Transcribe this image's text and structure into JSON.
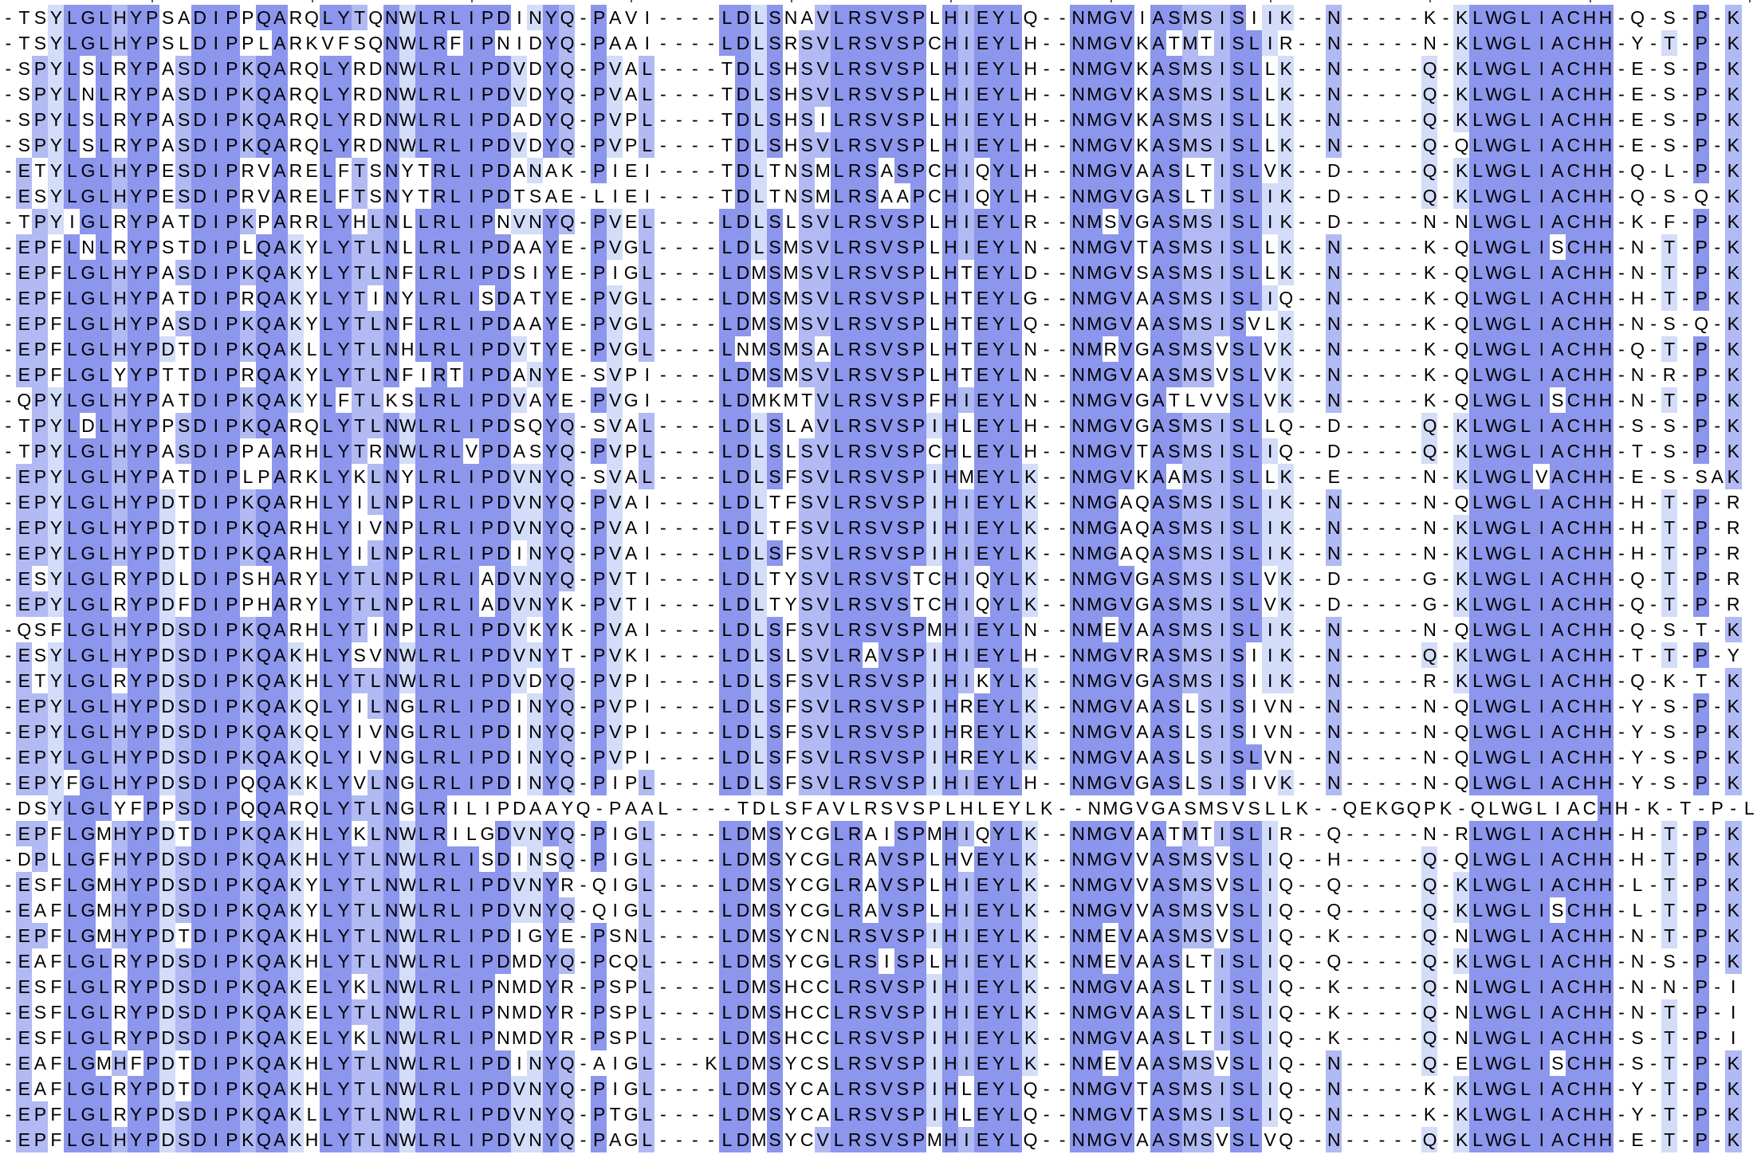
{
  "palette": {
    "dark": "#8c96ec",
    "mid": "#b1baf2",
    "light": "#d3dcf8",
    "none": "#ffffff",
    "text": "#000000"
  },
  "rows": [
    "-TSYLGLHYPSADIPPQARQLYTQNWLRLIPDINYQ-PAVI----LDLSNAVLRSVSPLHIEYLQ--NMGVIASMSISIIK--N-----K-KLWGLIACHH-Q-S-P-K",
    "-TSYLGLHYPSLDIPPLARKVFSQNWLRFIPNIDYQ-PAAI----LDLSRSVLRSVSPCHIEYLH--NMGVKATMTISLIR--N-----N-KLWGLIACHH-Y-T-P-K",
    "-SPYLSLRYPASDIPKQARQLYRDNWLRLIPDVDYQ-PVAL----TDLSHSVLRSVSPLHIEYLH--NMGVKASMSISLLK--N-----Q-KLWGLIACHH-E-S-P-K",
    "-SPYLNLRYPASDIPKQARQLYRDNWLRLIPDVDYQ-PVAL----TDLSHSVLRSVSPLHIEYLH--NMGVKASMSISLLK--N-----Q-KLWGLIACHH-E-S-P-K",
    "-SPYLSLRYPASDIPKQARQLYRDNWLRLIPDADYQ-PVPL----TDLSHSILRSVSPLHIEYLH--NMGVKASMSISLLK--N-----Q-KLWGLIACHH-E-S-P-K",
    "-SPYLSLRYPASDIPKQARQLYRDNWLRLIPDVDYQ-PVPL----TDLSHSVLRSVSPLHIEYLH--NMGVKASMSISLLK--N-----Q-QLWGLIACHH-E-S-P-K",
    "-ETYLGLHYPESDIPRVARELFTSNYTRLIPDANAK-PIEI----TDLTNSMLRSASPCHIQYLH--NMGVAASLTISLVK--D-----Q-KLWGLIACHH-Q-L-P-K",
    "-ESYLGLHYPESDIPRVARELFTSNYTRLIPDTSAE-LIEI----TDLTNSMLRSAAPCHIQYLH--NMGVGASLTISLIK--D-----Q-KLWGLIACHH-Q-S-Q-K",
    "-TPYIGLRYPATDIPKPARRLYHLNLLRLIPNVNYQ-PVEL----LDLSLSVLRSVSPLHIEYLR--NMSVGASMSISLIK--D-----N-NLWGLIACHH-K-F-P-K",
    "-EPFLNLRYPSTDIPLQAKYLYTLNLLRLIPDAAYE-PVGL----LDLSMSVLRSVSPLHIEYLN--NMGVTASMSISLLK--N-----K-QLWGLISCHH-N-T-P-K",
    "-EPFLGLHYPASDIPKQAKYLYTLNFLRLIPDSIYE-PIGL----LDMSMSVLRSVSPLHTEYLD--NMGVSASMSISLLK--N-----K-QLWGLIACHH-N-T-P-K",
    "-EPFLGLHYPATDIPRQAKYLYTINYLRLISDATYE-PVGL----LDMSMSVLRSVSPLHTEYLG--NMGVAASMSISLIQ--N-----K-QLWGLIACHH-H-T-P-K",
    "-EPFLGLHYPASDIPKQAKYLYTLNFLRLIPDAAYE-PVGL----LDMSMSVLRSVSPLHTEYLQ--NMGVAASMSISVLK--N-----K-QLWGLIACHH-N-S-Q-K",
    "-EPFLGLHYPDTDIPKQAKLLYTLNHLRLIPDVTYE-PVGL----LNMSMSALRSVSPLHTEYLN--NMRVGASMSVSLVK--N-----K-QLWGLIACHH-Q-T-P-K",
    "-EPFLGLYYPTTDIPRQAKYLYTLNFIRTIPDANYE-SVPI----LDMSMSVLRSVSPLHTEYLN--NMGVAASMSVSLVK--N-----K-QLWGLIACHH-N-R-P-K",
    "-QPYLGLHYPATDIPKQAKYLFTLKSLRLIPDVAYE-PVGI----LDMKMTVLRSVSPFHIEYLN--NMGVGATLVVSLVK--N-----K-QLWGLISCHH-N-T-P-K",
    "-TPYLDLHYPPSDIPKQARQLYTLNWLRLIPDSQYQ-SVAL----LDLSLAVLRSVSPIHLEYLH--NMGVGASMSISLLQ--D-----Q-KLWGLIACHH-S-S-P-K",
    "-TPYLGLHYPASDIPPAARHLYTRNWLRLVPDASYQ-PVPL----LDLSLSVLRSVSPCHLEYLH--NMGVTASMSISLIQ--D-----Q-KLWGLIACHH-T-S-P-K",
    "-EPYLGLHYPATDIPLPARKLYKLNYLRLIPDVNYQ-SVAL----LDLSFSVLRSVSPIHMEYLK--NMGVKAAMSISLLK--E-----N-KLWGLVACHH-E-S-SAK",
    "-EPYLGLHYPDTDIPKQARHLYILNPLRLIPDVNYQ-PVAI----LDLTFSVLRSVSPIHIEYLK--NMGAQASMSISLIK--N-----N-QLWGLIACHH-H-T-P-R",
    "-EPYLGLHYPDTDIPKQARHLYIVNPLRLIPDVNYQ-PVAI----LDLTFSVLRSVSPIHIEYLK--NMGAQASMSISLIK--N-----N-KLWGLIACHH-H-T-P-R",
    "-EPYLGLHYPDTDIPKQARHLYILNPLRLIPDINYQ-PVAI----LDLSFSVLRSVSPIHIEYLK--NMGAQASMSISLIK--N-----N-KLWGLIACHH-H-T-P-R",
    "-ESYLGLRYPDLDIPSHARYLYTLNPLRLIADVNYQ-PVTI----LDLTYSVLRSVSTCHIQYLK--NMGVGASMSISLVK--D-----G-KLWGLIACHH-Q-T-P-R",
    "-EPYLGLRYPDFDIPPHARYLYTLNPLRLIADVNYK-PVTI----LDLTYSVLRSVSTCHIQYLK--NMGVGASMSISLVK--D-----G-KLWGLIACHH-Q-T-P-R",
    "-QSFLGLHYPDSDIPKQARHLYTINPLRLIPDVKYK-PVAI----LDLSFSVLRSVSPMHIEYLN--NMEVAASMSISLIK--N-----N-QLWGLIACHH-Q-S-T-K",
    "-ESYLGLHYPDSDIPKQAKHLYSVNWLRLIPDVNYT-PVKI----LDLSLSVLRAVSPIHIEYLH--NMGVRASMSISIIK--N-----Q-KLWGLIACHH-T-T-P-Y",
    "-ETYLGLRYPDSDIPKQAKHLYTLNWLRLIPDVDYQ-PVPI----LDLSFSVLRSVSPIHIKYLK--NMGVGASMSISIIK--N-----R-KLWGLIACHH-Q-K-T-K",
    "-EPYLGLHYPDSDIPKQAKQLYILNGLRLIPDINYQ-PVPI----LDLSFSVLRSVSPIHREYLK--NMGVAASLSISIVN--N-----N-QLWGLIACHH-Y-S-P-K",
    "-EPYLGLHYPDSDIPKQAKQLYIVNGLRLIPDINYQ-PVPI----LDLSFSVLRSVSPIHREYLK--NMGVAASLSISIVN--N-----N-QLWGLIACHH-Y-S-P-K",
    "-EPYLGLHYPDSDIPKQAKQLYIVNGLRLIPDINYQ-PVPI----LDLSFSVLRSVSPIHREYLK--NMGVAASLSISLVN--N-----N-QLWGLIACHH-Y-S-P-K",
    "-EPYFGLHYPDSDIPQQAKKLYVLNGLRLIPDINYQ-PIPL----LDLSFSVLRSVSPIHIEYLH--NMGVGASLSISIVK--N-----N-QLWGLIACHH-Y-S-P-K",
    "-DSYLGLYFPPSDIPQQARQLYTLNGLRILIPDAAYQ-PAAL----TDLSFAVLRSVSPLHLEYLK--NMGVGASMSVSLLK--QEKGQPK-QLWGLIACHH-K-T-P-L",
    "-EPFLGMHYPDTDIPKQAKHLYKLNWLRILGDVNYQ-PIGL----LDMSYCGLRAISPMHIQYLK--NMGVAATMTISLIR--Q-----N-RLWGLIACHH-H-T-P-K",
    "-DPLLGFHYPDSDIPKQAKHLYTLNWLRLISDINSQ-PIGL----LDMSYCGLRAVSPLHVEYLK--NMGVVASMSVSLIQ--H-----Q-QLWGLIACHH-H-T-P-K",
    "-ESFLGMHYPDSDIPKQAKYLYTLNWLRLIPDVNYR-QIGL----LDMSYCGLRAVSPLHIEYLK--NMGVVASMSVSLIQ--Q-----Q-KLWGLIACHH-L-T-P-K",
    "-EAFLGMHYPDSDIPKQAKYLYTLNWLRLIPDVNYQ-QIGL----LDMSYCGLRAVSPLHIEYLK--NMGVVASMSVSLIQ--Q-----Q-KLWGLISCHH-L-T-P-K",
    "-EPFLGMHYPDTDIPKQAKHLYTLNWLRLIPDIGYE-PSNL----LDMSYCNLRSVSPIHIEYLK--NMEVAASMSVSLIQ--K-----Q-NLWGLIACHH-N-T-P-K",
    "-EAFLGLRYPDSDIPKQAKHLYTLNWLRLIPDMDYQ-PCQL----LDMSYCGLRSISPLHIEYLK--NMEVAASLTISLIQ--Q-----Q-KLWGLIACHH-N-S-P-K",
    "-ESFLGLRYPDSDIPKQAKELYKLNWLRLIPNMDYR-PSPL----LDMSHCCLRSVSPIHIEYLK--NMGVAASLTISLIQ--K-----Q-NLWGLIACHH-N-N-P-I",
    "-ESFLGLRYPDSDIPKQAKELYTLNWLRLIPNMDYR-PSPL----LDMSHCCLRSVSPIHIEYLK--NMGVAASLTISLIQ--K-----Q-NLWGLIACHH-N-T-P-I",
    "-ESFLGLRYPDSDIPKQAKELYKLNWLRLIPNMDYR-PSPL----LDMSHCCLRSVSPIHIEYLK--NMGVAASLTISLIQ--K-----Q-NLWGLIACHH-S-T-P-I",
    "-EAFLGMHFPDTDIPKQAKHLYTLNWLRLIPDINYQ-AIGL---KLDMSYCSLRSVSPIHIEYLK--NMEVAASMSVSLIQ--N-----Q-ELWGLISCHH-S-T-P-K",
    "-EAFLGLRYPDTDIPKQAKHLYTLNWLRLIPDVNYQ-PIGL----LDMSYCALRSVSPIHLEYLQ--NMGVTASMSISLIQ--N-----K-KLWGLIACHH-Y-T-P-K",
    "-EPFLGLRYPDSDIPKQAKLLYTLNWLRLIPDVNYQ-PTGL----LDMSYCALRSVSPIHLEYLQ--NMGVTASMSISLIQ--N-----K-KLWGLIACHH-Y-T-P-K",
    "-EPFLGLHYPDSDIPKQAKHLYTLNWLRLIPDVNYQ-PAGL----LDMSYCVLRSVSPMHIEYLQ--NMGVAASMSVSLVQ--N-----Q-KLWGLIACHH-E-T-P-K"
  ]
}
